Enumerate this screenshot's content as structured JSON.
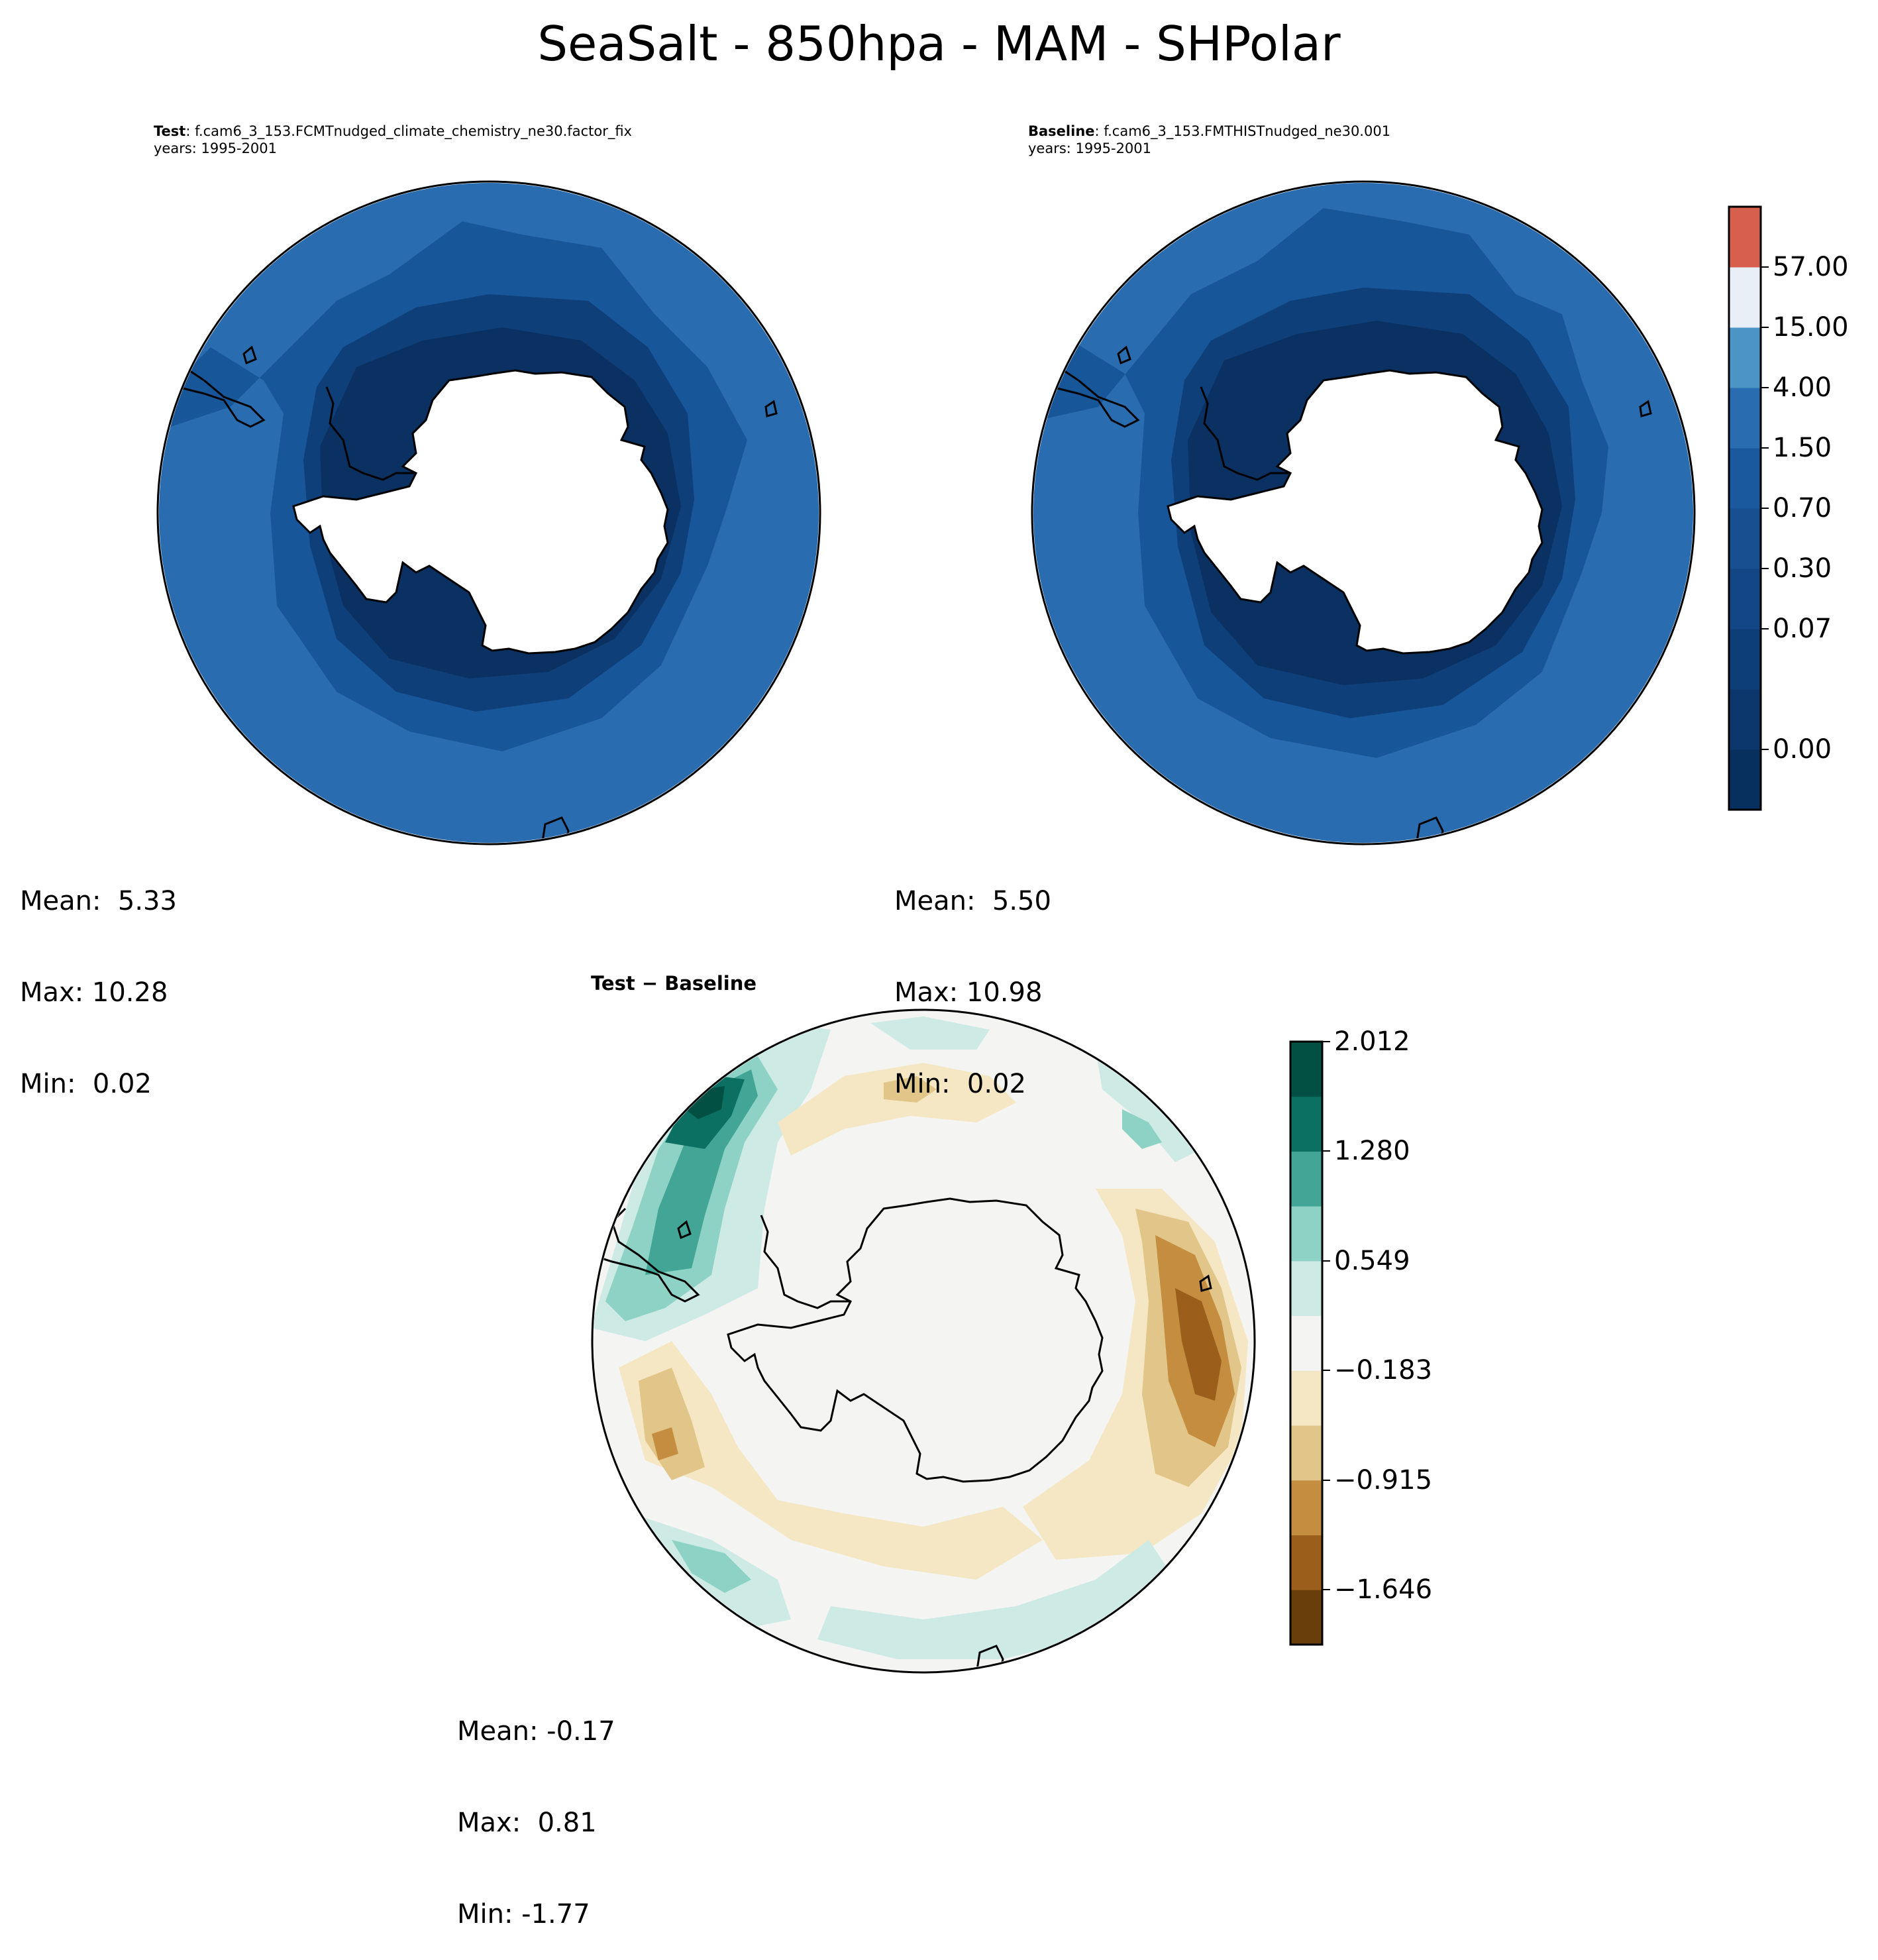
{
  "figure": {
    "title": "SeaSalt - 850hpa - MAM - SHPolar"
  },
  "panels": {
    "test": {
      "label_bold": "Test",
      "label_rest": ": f.cam6_3_153.FCMTnudged_climate_chemistry_ne30.factor_fix",
      "years": "years: 1995-2001",
      "stats": {
        "mean": "Mean:  5.33",
        "max": "Max: 10.28",
        "min": "Min:  0.02"
      }
    },
    "baseline": {
      "label_bold": "Baseline",
      "label_rest": ": f.cam6_3_153.FMTHISTnudged_ne30.001",
      "years": "years: 1995-2001",
      "stats": {
        "mean": "Mean:  5.50",
        "max": "Max: 10.98",
        "min": "Min:  0.02"
      }
    },
    "diff": {
      "title": "Test − Baseline",
      "stats": {
        "mean": "Mean: -0.17",
        "max": "Max:  0.81",
        "min": "Min: -1.77"
      }
    }
  },
  "chart_data": [
    {
      "type": "heatmap",
      "projection": "south-polar-stereographic",
      "panel": "test",
      "colorbar_ref": "main",
      "colors": {
        "ocean_outer": "#2a6cb0",
        "ocean_mid": "#18569a",
        "ocean_inner": "#0e3f78",
        "ocean_core": "#0a3162",
        "land": "#ffffff",
        "coast": "#000000"
      }
    },
    {
      "type": "heatmap",
      "projection": "south-polar-stereographic",
      "panel": "baseline",
      "colorbar_ref": "main",
      "colors": {
        "ocean_outer": "#2a6cb0",
        "ocean_mid": "#18569a",
        "ocean_inner": "#0e3f78",
        "ocean_core": "#0a3162",
        "land": "#ffffff",
        "coast": "#000000"
      }
    },
    {
      "type": "heatmap",
      "projection": "south-polar-stereographic",
      "panel": "diff",
      "colorbar_ref": "diff",
      "colors": {
        "neutral": "#f4f4f2",
        "light_tan": "#f5e7c4",
        "tan": "#e2c689",
        "brown": "#c48d40",
        "dark_brown": "#9b5f1b",
        "light_teal": "#cdeae5",
        "teal": "#8dd2c5",
        "mid_teal": "#42a595",
        "dark_teal": "#0b6f62",
        "darkest_teal": "#024f43"
      }
    }
  ],
  "colorbars": {
    "main": {
      "ticks": [
        "57.00",
        "15.00",
        "4.00",
        "1.50",
        "0.70",
        "0.30",
        "0.07",
        "0.00"
      ],
      "colors_bottom_to_top": [
        "#08305e",
        "#0b376c",
        "#0e3e78",
        "#124684",
        "#174f91",
        "#1b599e",
        "#2a6cb0",
        "#4b95c6",
        "#e9eff6",
        "#d6604d"
      ]
    },
    "diff": {
      "ticks": [
        "2.012",
        "1.280",
        "0.549",
        "−0.183",
        "−0.915",
        "−1.646"
      ],
      "colors_bottom_to_top": [
        "#6a3e0b",
        "#9b5f1b",
        "#c48d40",
        "#e2c689",
        "#f5e7c4",
        "#f4f4f2",
        "#cdeae5",
        "#8dd2c5",
        "#42a595",
        "#0b6f62",
        "#024f43"
      ]
    }
  }
}
